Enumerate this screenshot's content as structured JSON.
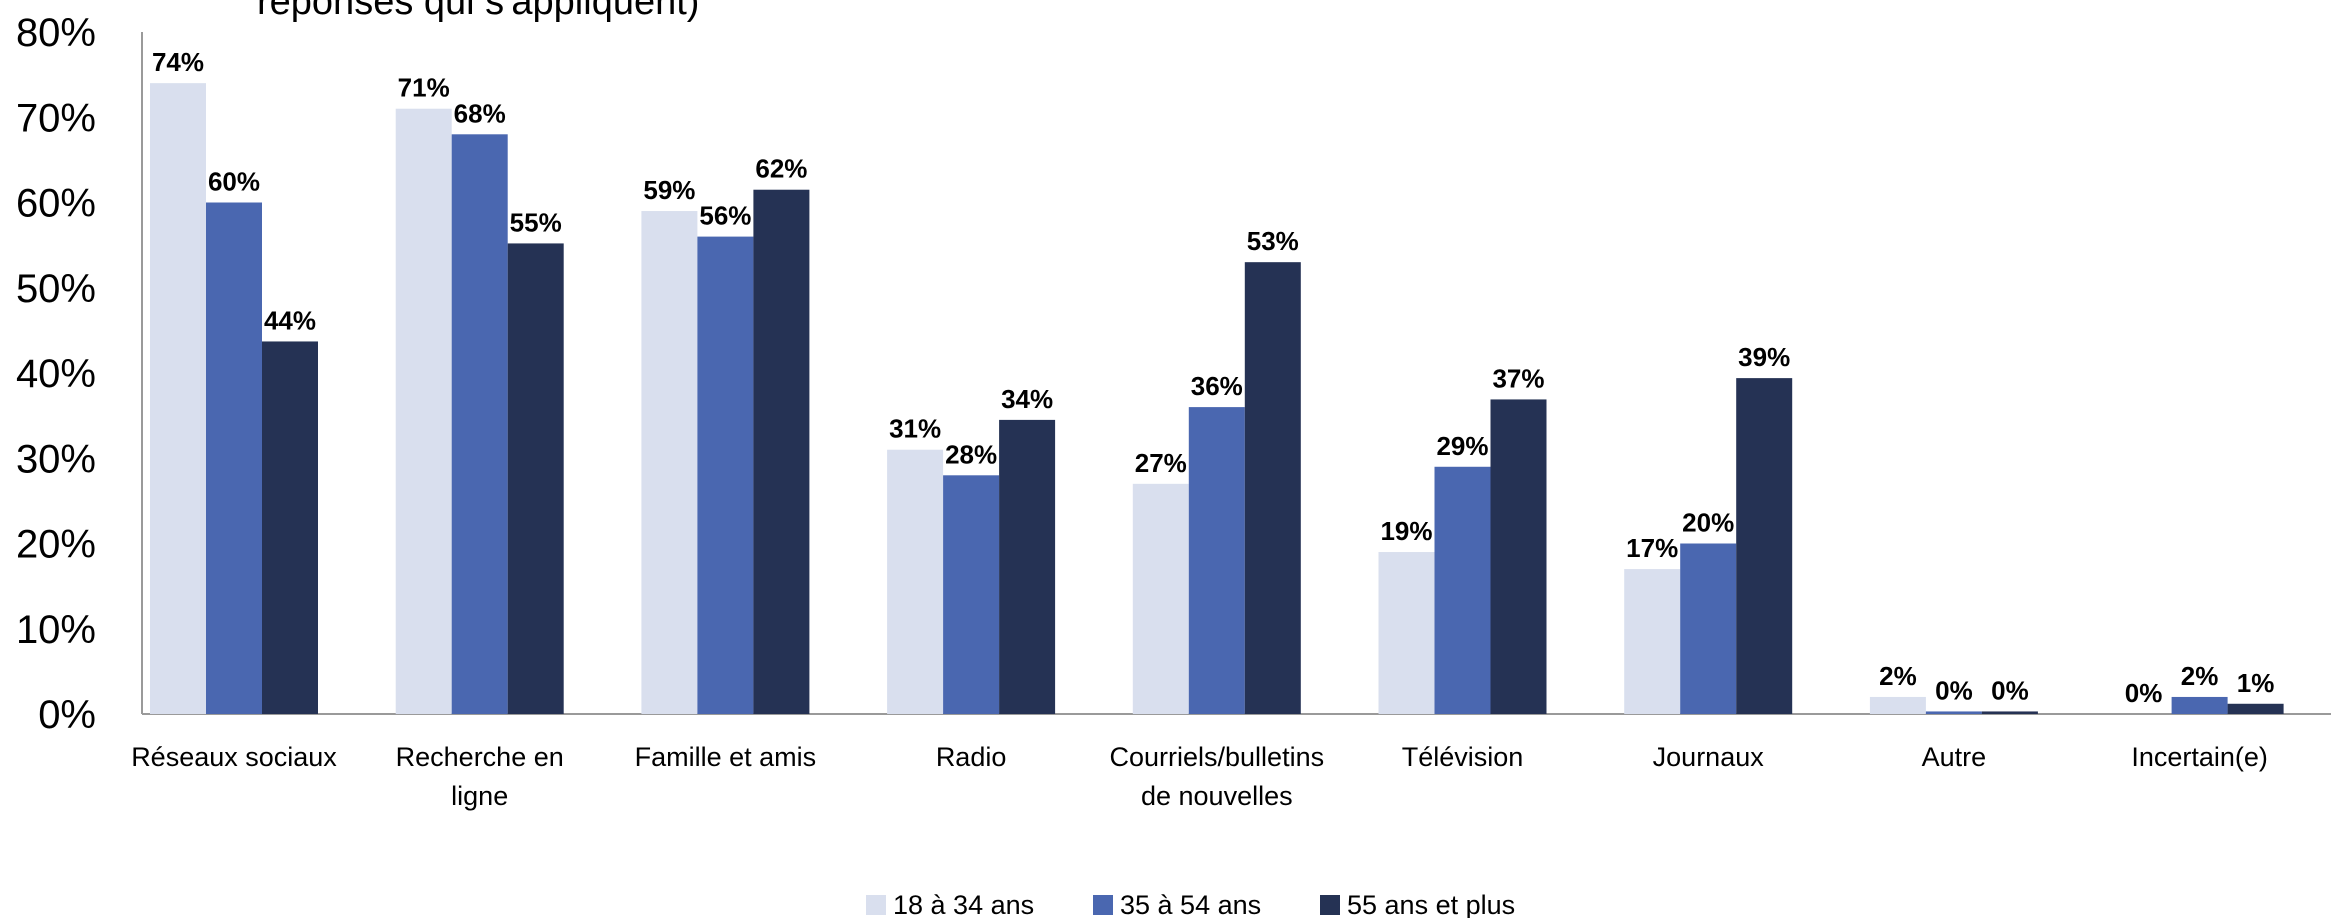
{
  "chart_data": {
    "type": "bar",
    "title": "réponses qui s'appliquent)",
    "categories": [
      [
        "Réseaux sociaux"
      ],
      [
        "Recherche en",
        "ligne"
      ],
      [
        "Famille et amis"
      ],
      [
        "Radio"
      ],
      [
        "Courriels/bulletins",
        "de nouvelles"
      ],
      [
        "Télévision"
      ],
      [
        "Journaux"
      ],
      [
        "Autre"
      ],
      [
        "Incertain(e)"
      ]
    ],
    "series": [
      {
        "name": "18 à 34 ans",
        "color": "#d9dfee",
        "values": [
          74,
          71,
          59,
          31,
          27,
          19,
          17,
          2,
          0
        ]
      },
      {
        "name": "35 à 54 ans",
        "color": "#4a67b0",
        "values": [
          60,
          68,
          56,
          28,
          36,
          29,
          20,
          0,
          2
        ]
      },
      {
        "name": "55 ans et plus",
        "color": "#253254",
        "values": [
          44,
          55,
          62,
          34,
          53,
          37,
          39,
          0,
          1
        ]
      }
    ],
    "display_values": [
      [
        74,
        71,
        59,
        31,
        27,
        19,
        17,
        2,
        0
      ],
      [
        60,
        68,
        56,
        28,
        36,
        29,
        20,
        0.3,
        2
      ],
      [
        43.7,
        55.2,
        61.5,
        34.5,
        53,
        36.9,
        39.4,
        0.3,
        1.2
      ]
    ],
    "yticks": [
      "0%",
      "10%",
      "20%",
      "30%",
      "40%",
      "50%",
      "60%",
      "70%",
      "80%"
    ],
    "ylim": [
      0,
      80
    ],
    "value_suffix": "%",
    "legend_position": "bottom",
    "grid": false
  }
}
